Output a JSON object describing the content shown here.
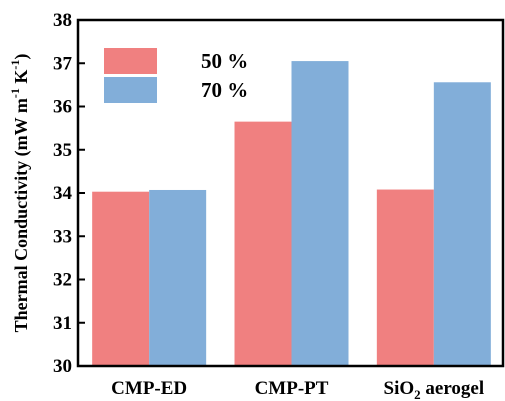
{
  "chart_data": {
    "type": "bar",
    "categories": [
      "CMP-ED",
      "CMP-PT",
      "SiO2 aerogel"
    ],
    "category_labels": [
      {
        "main": "CMP-ED",
        "sub": "",
        "rest": ""
      },
      {
        "main": "CMP-PT",
        "sub": "",
        "rest": ""
      },
      {
        "main": "SiO",
        "sub": "2",
        "rest": " aerogel"
      }
    ],
    "series": [
      {
        "name": "50 %",
        "color": "#f08080",
        "values": [
          34.03,
          35.65,
          34.08
        ]
      },
      {
        "name": "70 %",
        "color": "#82aed9",
        "values": [
          34.07,
          37.05,
          36.56
        ]
      }
    ],
    "ylim": [
      30,
      38
    ],
    "yticks": [
      "30",
      "31",
      "32",
      "33",
      "34",
      "35",
      "36",
      "37",
      "38"
    ],
    "ylabel": {
      "prefix": "Thermal Conductivity (mW m",
      "sup1": "-1",
      "mid": " K",
      "sup2": "-1",
      "suffix": ")"
    },
    "xlabel": "",
    "legend": "top-left",
    "grid": false
  }
}
